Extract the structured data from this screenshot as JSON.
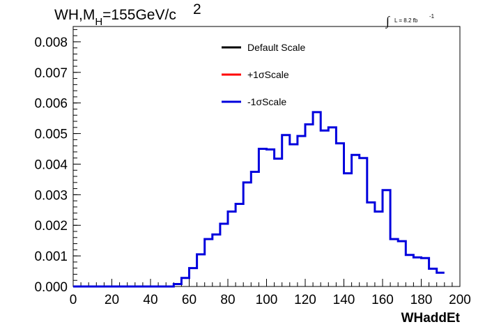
{
  "chart_data": {
    "type": "line",
    "title_parts": {
      "main": "WH,M",
      "sub": "H",
      "rest": "=155GeV/c",
      "sup": "2"
    },
    "lumi": {
      "symbol": "∫",
      "text": "L = 8.2 fb",
      "sup": "-1"
    },
    "xlabel": "WHaddEt",
    "ylabel": "",
    "xlim": [
      0,
      200
    ],
    "ylim": [
      0,
      0.0085
    ],
    "x_ticks": [
      0,
      20,
      40,
      60,
      80,
      100,
      120,
      140,
      160,
      180,
      200
    ],
    "x_tick_labels": [
      "0",
      "20",
      "40",
      "60",
      "80",
      "100",
      "120",
      "140",
      "160",
      "180",
      "200"
    ],
    "y_ticks": [
      0,
      0.001,
      0.002,
      0.003,
      0.004,
      0.005,
      0.006,
      0.007,
      0.008
    ],
    "y_tick_labels": [
      "0.000",
      "0.001",
      "0.002",
      "0.003",
      "0.004",
      "0.005",
      "0.006",
      "0.007",
      "0.008"
    ],
    "bin_width": 4,
    "bin_edges_start": 0,
    "legend": [
      {
        "label": "Default Scale",
        "color": "#000000"
      },
      {
        "label": "+1σScale",
        "color": "#ff0000"
      },
      {
        "label": "-1σScale",
        "color": "#0000dd"
      }
    ],
    "series": [
      {
        "name": "-1σScale",
        "color": "#0000dd",
        "values": [
          0,
          0,
          0,
          0,
          0,
          0,
          0,
          0,
          0,
          0,
          0,
          0,
          0,
          8e-05,
          0.00028,
          0.0006,
          0.00105,
          0.00155,
          0.0017,
          0.00205,
          0.00245,
          0.0027,
          0.0034,
          0.00375,
          0.0045,
          0.00448,
          0.00418,
          0.00495,
          0.00465,
          0.00492,
          0.0053,
          0.0057,
          0.0051,
          0.0052,
          0.00468,
          0.0037,
          0.0043,
          0.0042,
          0.00275,
          0.00245,
          0.00315,
          0.00155,
          0.00148,
          0.00103,
          0.00095,
          0.00093,
          0.00058,
          0.00045
        ]
      }
    ]
  }
}
